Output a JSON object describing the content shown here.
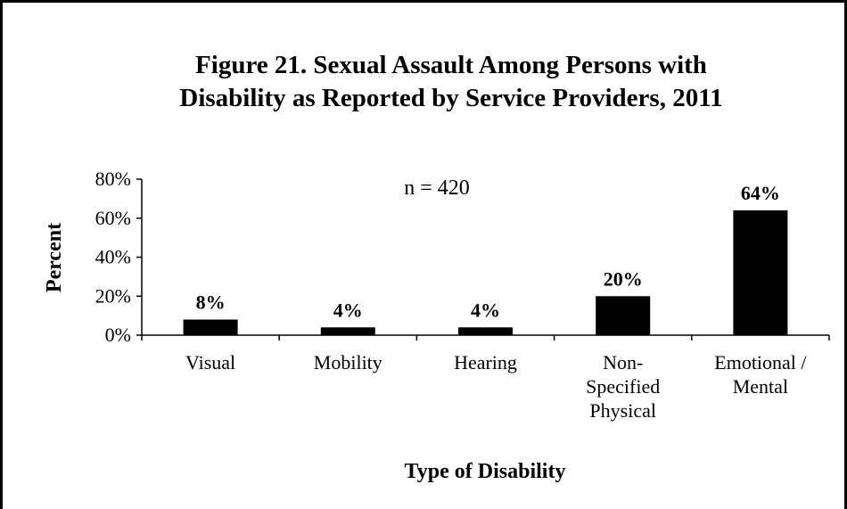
{
  "chart_data": {
    "type": "bar",
    "title_lines": [
      "Figure 21.  Sexual Assault Among Persons with",
      "Disability as Reported by Service Providers, 2011"
    ],
    "annotation": "n = 420",
    "xlabel": "Type of Disability",
    "ylabel": "Percent",
    "ylim": [
      0,
      80
    ],
    "yticks": [
      "0%",
      "20%",
      "40%",
      "60%",
      "80%"
    ],
    "ytick_values": [
      0,
      20,
      40,
      60,
      80
    ],
    "categories": [
      [
        "Visual"
      ],
      [
        "Mobility"
      ],
      [
        "Hearing"
      ],
      [
        "Non-",
        "Specified",
        "Physical"
      ],
      [
        "Emotional /",
        "Mental"
      ]
    ],
    "values": [
      8,
      4,
      4,
      20,
      64
    ],
    "data_labels": [
      "8%",
      "4%",
      "4%",
      "20%",
      "64%"
    ],
    "bar_color": "#000000",
    "grid": false,
    "legend": "none"
  }
}
